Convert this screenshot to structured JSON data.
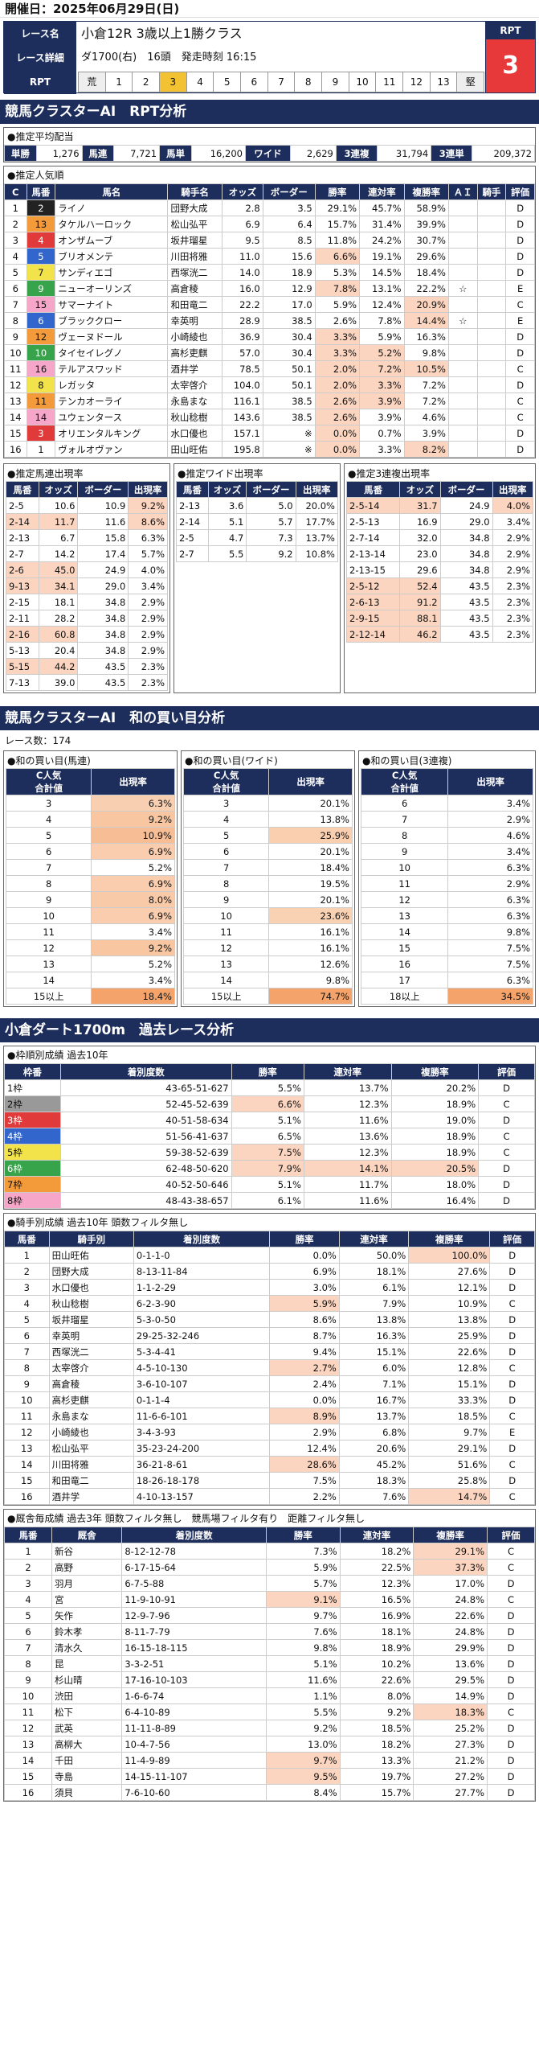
{
  "date": "開催日：2025年06月29日(日)",
  "race": {
    "name_label": "レース名",
    "name": "小倉12R 3歳以上1勝クラス",
    "detail_label": "レース詳細",
    "detail": "ダ1700(右)　16頭　発走時刻 16:15",
    "rpt_label": "RPT",
    "rpt_title": "RPT",
    "rpt_value": "3",
    "rpt_scale": [
      "荒",
      "1",
      "2",
      "3",
      "4",
      "5",
      "6",
      "7",
      "8",
      "9",
      "10",
      "11",
      "12",
      "13",
      "堅"
    ],
    "rpt_selected": "3"
  },
  "sec1": "競馬クラスターAI　RPT分析",
  "payout": {
    "caption": "●推定平均配当",
    "items": [
      [
        "単勝",
        "1,276"
      ],
      [
        "馬連",
        "7,721"
      ],
      [
        "馬単",
        "16,200"
      ],
      [
        "ワイド",
        "2,629"
      ],
      [
        "3連複",
        "31,794"
      ],
      [
        "3連単",
        "209,372"
      ]
    ]
  },
  "pop": {
    "caption": "●推定人気順",
    "headers": [
      "C",
      "馬番",
      "馬名",
      "騎手名",
      "オッズ",
      "ボーダー",
      "勝率",
      "連対率",
      "複勝率",
      "ＡＩ",
      "騎手",
      "評価"
    ],
    "rows": [
      [
        "1",
        "2",
        "ライノ",
        "団野大成",
        "2.8",
        "3.5",
        "29.1%",
        "45.7%",
        "58.9%",
        "",
        "",
        "D"
      ],
      [
        "2",
        "13",
        "タケルハーロック",
        "松山弘平",
        "6.9",
        "6.4",
        "15.7%",
        "31.4%",
        "39.9%",
        "",
        "",
        "D"
      ],
      [
        "3",
        "4",
        "オンザムーブ",
        "坂井瑠星",
        "9.5",
        "8.5",
        "11.8%",
        "24.2%",
        "30.7%",
        "",
        "",
        "D"
      ],
      [
        "4",
        "5",
        "ブリオメンテ",
        "川田将雅",
        "11.0",
        "15.6",
        "6.6%",
        "19.1%",
        "29.6%",
        "",
        "",
        "D"
      ],
      [
        "5",
        "7",
        "サンディエゴ",
        "西塚洸二",
        "14.0",
        "18.9",
        "5.3%",
        "14.5%",
        "18.4%",
        "",
        "",
        "D"
      ],
      [
        "6",
        "9",
        "ニューオーリンズ",
        "高倉稜",
        "16.0",
        "12.9",
        "7.8%",
        "13.1%",
        "22.2%",
        "☆",
        "",
        "E"
      ],
      [
        "7",
        "15",
        "サマーナイト",
        "和田竜二",
        "22.2",
        "17.0",
        "5.9%",
        "12.4%",
        "20.9%",
        "",
        "",
        "C"
      ],
      [
        "8",
        "6",
        "ブラッククロー",
        "幸英明",
        "28.9",
        "38.5",
        "2.6%",
        "7.8%",
        "14.4%",
        "☆",
        "",
        "E"
      ],
      [
        "9",
        "12",
        "ヴェーヌドール",
        "小崎綾也",
        "36.9",
        "30.4",
        "3.3%",
        "5.9%",
        "16.3%",
        "",
        "",
        "D"
      ],
      [
        "10",
        "10",
        "タイセイレグノ",
        "高杉吏麒",
        "57.0",
        "30.4",
        "3.3%",
        "5.2%",
        "9.8%",
        "",
        "",
        "D"
      ],
      [
        "11",
        "16",
        "テルアスワッド",
        "酒井学",
        "78.5",
        "50.1",
        "2.0%",
        "7.2%",
        "10.5%",
        "",
        "",
        "C"
      ],
      [
        "12",
        "8",
        "レガッタ",
        "太宰啓介",
        "104.0",
        "50.1",
        "2.0%",
        "3.3%",
        "7.2%",
        "",
        "",
        "D"
      ],
      [
        "13",
        "11",
        "テンカオーライ",
        "永島まな",
        "116.1",
        "38.5",
        "2.6%",
        "3.9%",
        "7.2%",
        "",
        "",
        "C"
      ],
      [
        "14",
        "14",
        "ユウェンタース",
        "秋山稔樹",
        "143.6",
        "38.5",
        "2.6%",
        "3.9%",
        "4.6%",
        "",
        "",
        "C"
      ],
      [
        "15",
        "3",
        "オリエンタルキング",
        "水口優也",
        "157.1",
        "※",
        "0.0%",
        "0.7%",
        "3.9%",
        "",
        "",
        "D"
      ],
      [
        "16",
        "1",
        "ヴォルオヴァン",
        "田山旺佑",
        "195.8",
        "※",
        "0.0%",
        "3.3%",
        "8.2%",
        "",
        "",
        "D"
      ]
    ]
  },
  "umaren": {
    "caption": "●推定馬連出現率",
    "headers": [
      "馬番",
      "オッズ",
      "ボーダー",
      "出現率"
    ],
    "rows": [
      [
        "2-5",
        "10.6",
        "10.9",
        "9.2%"
      ],
      [
        "2-14",
        "11.7",
        "11.6",
        "8.6%"
      ],
      [
        "2-13",
        "6.7",
        "15.8",
        "6.3%"
      ],
      [
        "2-7",
        "14.2",
        "17.4",
        "5.7%"
      ],
      [
        "2-6",
        "45.0",
        "24.9",
        "4.0%"
      ],
      [
        "9-13",
        "34.1",
        "29.0",
        "3.4%"
      ],
      [
        "2-15",
        "18.1",
        "34.8",
        "2.9%"
      ],
      [
        "2-11",
        "28.2",
        "34.8",
        "2.9%"
      ],
      [
        "2-16",
        "60.8",
        "34.8",
        "2.9%"
      ],
      [
        "5-13",
        "20.4",
        "34.8",
        "2.9%"
      ],
      [
        "5-15",
        "44.2",
        "43.5",
        "2.3%"
      ],
      [
        "7-13",
        "39.0",
        "43.5",
        "2.3%"
      ]
    ]
  },
  "wide": {
    "caption": "●推定ワイド出現率",
    "headers": [
      "馬番",
      "オッズ",
      "ボーダー",
      "出現率"
    ],
    "rows": [
      [
        "2-13",
        "3.6",
        "5.0",
        "20.0%"
      ],
      [
        "2-14",
        "5.1",
        "5.7",
        "17.7%"
      ],
      [
        "2-5",
        "4.7",
        "7.3",
        "13.7%"
      ],
      [
        "2-7",
        "5.5",
        "9.2",
        "10.8%"
      ]
    ]
  },
  "sanren": {
    "caption": "●推定3連複出現率",
    "headers": [
      "馬番",
      "オッズ",
      "ボーダー",
      "出現率"
    ],
    "rows": [
      [
        "2-5-14",
        "31.7",
        "24.9",
        "4.0%"
      ],
      [
        "2-5-13",
        "16.9",
        "29.0",
        "3.4%"
      ],
      [
        "2-7-14",
        "32.0",
        "34.8",
        "2.9%"
      ],
      [
        "2-13-14",
        "23.0",
        "34.8",
        "2.9%"
      ],
      [
        "2-13-15",
        "29.6",
        "34.8",
        "2.9%"
      ],
      [
        "2-5-12",
        "52.4",
        "43.5",
        "2.3%"
      ],
      [
        "2-6-13",
        "91.2",
        "43.5",
        "2.3%"
      ],
      [
        "2-9-15",
        "88.1",
        "43.5",
        "2.3%"
      ],
      [
        "2-12-14",
        "46.2",
        "43.5",
        "2.3%"
      ]
    ]
  },
  "sec2": "競馬クラスターAI　和の買い目分析",
  "race_count": "レース数：174",
  "wa_umaren": {
    "caption": "●和の買い目(馬連)",
    "headers": [
      "C人気\n合計値",
      "出現率"
    ],
    "rows": [
      [
        "3",
        "6.3%"
      ],
      [
        "4",
        "9.2%"
      ],
      [
        "5",
        "10.9%"
      ],
      [
        "6",
        "6.9%"
      ],
      [
        "7",
        "5.2%"
      ],
      [
        "8",
        "6.9%"
      ],
      [
        "9",
        "8.0%"
      ],
      [
        "10",
        "6.9%"
      ],
      [
        "11",
        "3.4%"
      ],
      [
        "12",
        "9.2%"
      ],
      [
        "13",
        "5.2%"
      ],
      [
        "14",
        "3.4%"
      ],
      [
        "15以上",
        "18.4%"
      ]
    ]
  },
  "wa_wide": {
    "caption": "●和の買い目(ワイド)",
    "headers": [
      "C人気\n合計値",
      "出現率"
    ],
    "rows": [
      [
        "3",
        "20.1%"
      ],
      [
        "4",
        "13.8%"
      ],
      [
        "5",
        "25.9%"
      ],
      [
        "6",
        "20.1%"
      ],
      [
        "7",
        "18.4%"
      ],
      [
        "8",
        "19.5%"
      ],
      [
        "9",
        "20.1%"
      ],
      [
        "10",
        "23.6%"
      ],
      [
        "11",
        "16.1%"
      ],
      [
        "12",
        "16.1%"
      ],
      [
        "13",
        "12.6%"
      ],
      [
        "14",
        "9.8%"
      ],
      [
        "15以上",
        "74.7%"
      ]
    ]
  },
  "wa_sanren": {
    "caption": "●和の買い目(3連複)",
    "headers": [
      "C人気\n合計値",
      "出現率"
    ],
    "rows": [
      [
        "6",
        "3.4%"
      ],
      [
        "7",
        "2.9%"
      ],
      [
        "8",
        "4.6%"
      ],
      [
        "9",
        "3.4%"
      ],
      [
        "10",
        "6.3%"
      ],
      [
        "11",
        "2.9%"
      ],
      [
        "12",
        "6.3%"
      ],
      [
        "13",
        "6.3%"
      ],
      [
        "14",
        "9.8%"
      ],
      [
        "15",
        "7.5%"
      ],
      [
        "16",
        "7.5%"
      ],
      [
        "17",
        "6.3%"
      ],
      [
        "18以上",
        "34.5%"
      ]
    ]
  },
  "sec3": "小倉ダート1700m　過去レース分析",
  "waku": {
    "caption": "●枠順別成績 過去10年",
    "headers": [
      "枠番",
      "着別度数",
      "勝率",
      "連対率",
      "複勝率",
      "評価"
    ],
    "rows": [
      [
        "1枠",
        "43-65-51-627",
        "5.5%",
        "13.7%",
        "20.2%",
        "D"
      ],
      [
        "2枠",
        "52-45-52-639",
        "6.6%",
        "12.3%",
        "18.9%",
        "C"
      ],
      [
        "3枠",
        "40-51-58-634",
        "5.1%",
        "11.6%",
        "19.0%",
        "D"
      ],
      [
        "4枠",
        "51-56-41-637",
        "6.5%",
        "13.6%",
        "18.9%",
        "C"
      ],
      [
        "5枠",
        "59-38-52-639",
        "7.5%",
        "12.3%",
        "18.9%",
        "C"
      ],
      [
        "6枠",
        "62-48-50-620",
        "7.9%",
        "14.1%",
        "20.5%",
        "D"
      ],
      [
        "7枠",
        "40-52-50-646",
        "5.1%",
        "11.7%",
        "18.0%",
        "D"
      ],
      [
        "8枠",
        "48-43-38-657",
        "6.1%",
        "11.6%",
        "16.4%",
        "D"
      ]
    ]
  },
  "jockey": {
    "caption": "●騎手別成績 過去10年 頭数フィルタ無し",
    "headers": [
      "馬番",
      "騎手別",
      "着別度数",
      "勝率",
      "連対率",
      "複勝率",
      "評価"
    ],
    "rows": [
      [
        "1",
        "田山旺佑",
        "0-1-1-0",
        "0.0%",
        "50.0%",
        "100.0%",
        "D"
      ],
      [
        "2",
        "団野大成",
        "8-13-11-84",
        "6.9%",
        "18.1%",
        "27.6%",
        "D"
      ],
      [
        "3",
        "水口優也",
        "1-1-2-29",
        "3.0%",
        "6.1%",
        "12.1%",
        "D"
      ],
      [
        "4",
        "秋山稔樹",
        "6-2-3-90",
        "5.9%",
        "7.9%",
        "10.9%",
        "C"
      ],
      [
        "5",
        "坂井瑠星",
        "5-3-0-50",
        "8.6%",
        "13.8%",
        "13.8%",
        "D"
      ],
      [
        "6",
        "幸英明",
        "29-25-32-246",
        "8.7%",
        "16.3%",
        "25.9%",
        "D"
      ],
      [
        "7",
        "西塚洸二",
        "5-3-4-41",
        "9.4%",
        "15.1%",
        "22.6%",
        "D"
      ],
      [
        "8",
        "太宰啓介",
        "4-5-10-130",
        "2.7%",
        "6.0%",
        "12.8%",
        "C"
      ],
      [
        "9",
        "高倉稜",
        "3-6-10-107",
        "2.4%",
        "7.1%",
        "15.1%",
        "D"
      ],
      [
        "10",
        "高杉吏麒",
        "0-1-1-4",
        "0.0%",
        "16.7%",
        "33.3%",
        "D"
      ],
      [
        "11",
        "永島まな",
        "11-6-6-101",
        "8.9%",
        "13.7%",
        "18.5%",
        "C"
      ],
      [
        "12",
        "小崎綾也",
        "3-4-3-93",
        "2.9%",
        "6.8%",
        "9.7%",
        "E"
      ],
      [
        "13",
        "松山弘平",
        "35-23-24-200",
        "12.4%",
        "20.6%",
        "29.1%",
        "D"
      ],
      [
        "14",
        "川田将雅",
        "36-21-8-61",
        "28.6%",
        "45.2%",
        "51.6%",
        "C"
      ],
      [
        "15",
        "和田竜二",
        "18-26-18-178",
        "7.5%",
        "18.3%",
        "25.8%",
        "D"
      ],
      [
        "16",
        "酒井学",
        "4-10-13-157",
        "2.2%",
        "7.6%",
        "14.7%",
        "C"
      ]
    ]
  },
  "sire": {
    "caption": "●厩舎毎成績 過去3年 頭数フィルタ無し　競馬場フィルタ有り　距離フィルタ無し",
    "headers": [
      "馬番",
      "厩舎",
      "着別度数",
      "勝率",
      "連対率",
      "複勝率",
      "評価"
    ],
    "rows": [
      [
        "1",
        "新谷",
        "8-12-12-78",
        "7.3%",
        "18.2%",
        "29.1%",
        "C"
      ],
      [
        "2",
        "高野",
        "6-17-15-64",
        "5.9%",
        "22.5%",
        "37.3%",
        "C"
      ],
      [
        "3",
        "羽月",
        "6-7-5-88",
        "5.7%",
        "12.3%",
        "17.0%",
        "D"
      ],
      [
        "4",
        "宮",
        "11-9-10-91",
        "9.1%",
        "16.5%",
        "24.8%",
        "C"
      ],
      [
        "5",
        "矢作",
        "12-9-7-96",
        "9.7%",
        "16.9%",
        "22.6%",
        "D"
      ],
      [
        "6",
        "鈴木孝",
        "8-11-7-79",
        "7.6%",
        "18.1%",
        "24.8%",
        "D"
      ],
      [
        "7",
        "清水久",
        "16-15-18-115",
        "9.8%",
        "18.9%",
        "29.9%",
        "D"
      ],
      [
        "8",
        "昆",
        "3-3-2-51",
        "5.1%",
        "10.2%",
        "13.6%",
        "D"
      ],
      [
        "9",
        "杉山晴",
        "17-16-10-103",
        "11.6%",
        "22.6%",
        "29.5%",
        "D"
      ],
      [
        "10",
        "渋田",
        "1-6-6-74",
        "1.1%",
        "8.0%",
        "14.9%",
        "D"
      ],
      [
        "11",
        "松下",
        "6-4-10-89",
        "5.5%",
        "9.2%",
        "18.3%",
        "C"
      ],
      [
        "12",
        "武英",
        "11-11-8-89",
        "9.2%",
        "18.5%",
        "25.2%",
        "D"
      ],
      [
        "13",
        "高柳大",
        "10-4-7-56",
        "13.0%",
        "18.2%",
        "27.3%",
        "D"
      ],
      [
        "14",
        "千田",
        "11-4-9-89",
        "9.7%",
        "13.3%",
        "21.2%",
        "D"
      ],
      [
        "15",
        "寺島",
        "14-15-11-107",
        "9.5%",
        "19.7%",
        "27.2%",
        "D"
      ],
      [
        "16",
        "須貝",
        "7-6-10-60",
        "8.4%",
        "15.7%",
        "27.7%",
        "D"
      ]
    ]
  }
}
